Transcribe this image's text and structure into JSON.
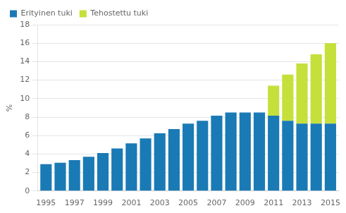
{
  "chart_data": {
    "type": "bar",
    "stacked": true,
    "ylabel": "%",
    "x": [
      1995,
      1996,
      1997,
      1998,
      1999,
      2000,
      2001,
      2002,
      2003,
      2004,
      2005,
      2006,
      2007,
      2008,
      2009,
      2010,
      2011,
      2012,
      2013,
      2014,
      2015
    ],
    "series": [
      {
        "name": "Erityinen tuki",
        "color": "#1a7ab5",
        "values": [
          2.9,
          3.05,
          3.35,
          3.7,
          4.1,
          4.6,
          5.15,
          5.7,
          6.25,
          6.7,
          7.3,
          7.6,
          8.15,
          8.5,
          8.5,
          8.5,
          8.15,
          7.6,
          7.3,
          7.3,
          7.3
        ]
      },
      {
        "name": "Tehostettu tuki",
        "color": "#c5e03a",
        "values": [
          0,
          0,
          0,
          0,
          0,
          0,
          0,
          0,
          0,
          0,
          0,
          0,
          0,
          0,
          0,
          0,
          3.25,
          5.0,
          6.5,
          7.5,
          8.7
        ]
      }
    ],
    "xlim": [
      1994.4,
      2015.6
    ],
    "xticks": [
      1995,
      1997,
      1999,
      2001,
      2003,
      2005,
      2007,
      2009,
      2011,
      2013,
      2015
    ],
    "ylim": [
      0,
      18
    ],
    "yticks": [
      0,
      2,
      4,
      6,
      8,
      10,
      12,
      14,
      16,
      18
    ],
    "grid": true,
    "legend": "upper left"
  }
}
